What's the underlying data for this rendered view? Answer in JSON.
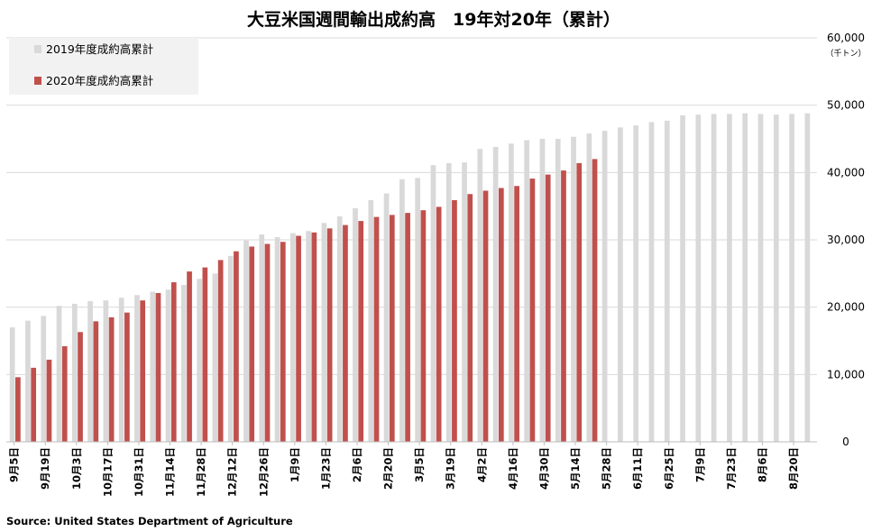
{
  "chart_data": {
    "type": "bar",
    "title": "大豆米国週間輸出成約高　19年対20年（累計）",
    "unit_label": "（千トン）",
    "source": "Source: United States Department of Agriculture",
    "ylim": [
      0,
      60000
    ],
    "yticks": [
      "0",
      "10,000",
      "20,000",
      "30,000",
      "40,000",
      "50,000",
      "60,000"
    ],
    "grid": true,
    "legend_position": "top-left",
    "categories_labeled": [
      "9月5日",
      "9月19日",
      "10月3日",
      "10月17日",
      "10月31日",
      "11月14日",
      "11月28日",
      "12月12日",
      "12月26日",
      "1月9日",
      "1月23日",
      "2月6日",
      "2月20日",
      "3月5日",
      "3月19日",
      "4月2日",
      "4月16日",
      "4月30日",
      "5月14日",
      "5月28日",
      "6月11日",
      "6月25日",
      "7月9日",
      "7月23日",
      "8月6日",
      "8月20日"
    ],
    "week_count": 52,
    "series": [
      {
        "name": "2019年度成約高累計",
        "color": "#d9d9d9",
        "values": [
          17000,
          18000,
          18700,
          20200,
          20500,
          20900,
          21000,
          21400,
          21800,
          22300,
          22600,
          23300,
          24200,
          25000,
          27600,
          29900,
          30800,
          30400,
          31000,
          31300,
          32500,
          33500,
          34700,
          35900,
          36900,
          39000,
          39200,
          41100,
          41400,
          41500,
          43500,
          43800,
          44300,
          44800,
          45000,
          45000,
          45300,
          45800,
          46200,
          46700,
          47000,
          47500,
          47700,
          48500,
          48600,
          48700,
          48700,
          48800,
          48700,
          48600,
          48700,
          48800
        ]
      },
      {
        "name": "2020年度成約高累計",
        "color": "#c0504d",
        "values": [
          9600,
          11000,
          12200,
          14200,
          16300,
          17900,
          18500,
          19200,
          21000,
          22100,
          23700,
          25300,
          25900,
          27000,
          28300,
          29000,
          29400,
          29700,
          30600,
          31100,
          31700,
          32200,
          32800,
          33400,
          33700,
          34000,
          34400,
          34900,
          35900,
          36800,
          37300,
          37700,
          38000,
          39100,
          39700,
          40300,
          41400,
          42000
        ]
      }
    ]
  }
}
